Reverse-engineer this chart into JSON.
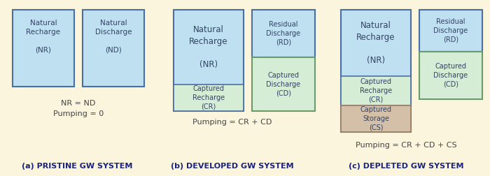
{
  "bg_color": "#FAF5DC",
  "blue": "#BEE0F0",
  "green": "#D5EDD5",
  "tan": "#D4C0A8",
  "border_blue": "#4A6FA5",
  "border_green": "#6A9A6A",
  "border_tan": "#9A8060",
  "text_dark": "#1A237E",
  "text_body": "#444444",
  "label_a": "(a) PRISTINE GW SYSTEM",
  "label_b": "(b) DEVELOPED GW SYSTEM",
  "label_c": "(c) DEPLETED GW SYSTEM",
  "eq_a1": "NR = ND",
  "eq_a2": "Pumping = 0",
  "eq_b": "Pumping = CR + CD",
  "eq_c": "Pumping = CR + CD + CS"
}
